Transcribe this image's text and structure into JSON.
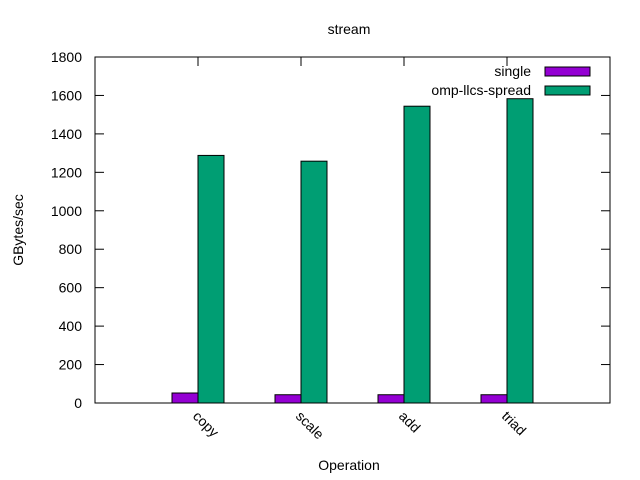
{
  "chart_data": {
    "type": "bar",
    "title": "stream",
    "xlabel": "Operation",
    "ylabel": "GBytes/sec",
    "categories": [
      "copy",
      "scale",
      "add",
      "triad"
    ],
    "ylim": [
      0,
      1800
    ],
    "yticks": [
      0,
      200,
      400,
      600,
      800,
      1000,
      1200,
      1400,
      1600,
      1800
    ],
    "legend_position": "top-right",
    "grid": false,
    "series": [
      {
        "name": "single",
        "color": "#9400d3",
        "values": [
          52,
          43,
          43,
          43
        ]
      },
      {
        "name": "omp-llcs-spread",
        "color": "#009e73",
        "values": [
          1288,
          1258,
          1544,
          1583
        ]
      }
    ]
  }
}
